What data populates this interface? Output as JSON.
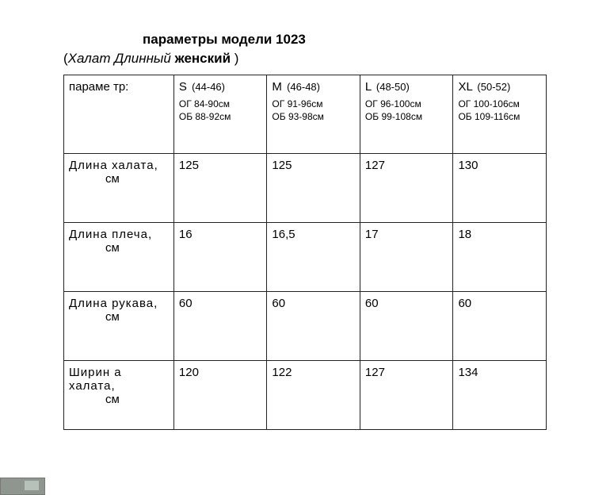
{
  "title": "параметры модели 1023",
  "subtitle_open": "(",
  "subtitle_italic": "Халат Длинный ",
  "subtitle_bold": "женский",
  "subtitle_close": " )",
  "header_param_label": "параме тр:",
  "sizes": [
    {
      "code": "S",
      "range": "(44-46)",
      "og": "ОГ 84-90см",
      "ob": "ОБ 88-92см"
    },
    {
      "code": "M",
      "range": "(46-48)",
      "og": "ОГ 91-96см",
      "ob": "ОБ 93-98см"
    },
    {
      "code": "L",
      "range": "(48-50)",
      "og": "ОГ 96-100см",
      "ob": "ОБ 99-108см"
    },
    {
      "code": "XL",
      "range": "(50-52)",
      "og": "ОГ 100-106см",
      "ob": "ОБ 109-116см"
    }
  ],
  "rows": [
    {
      "name": "Длина   халата,",
      "unit": "см",
      "vals": [
        "125",
        "125",
        "127",
        "130"
      ]
    },
    {
      "name": "Длина  плеча,",
      "unit": "см",
      "vals": [
        "16",
        "16,5",
        "17",
        "18"
      ]
    },
    {
      "name": "Длина  рукава,",
      "unit": "см",
      "vals": [
        "60",
        "60",
        "60",
        "60"
      ]
    },
    {
      "name": "Ширин а  халата,",
      "unit": "см",
      "vals": [
        "120",
        "122",
        "127",
        "134"
      ]
    }
  ],
  "style": {
    "border_color": "#222222",
    "bg": "#ffffff",
    "text": "#000000",
    "title_fontsize": 17,
    "cell_fontsize": 15,
    "sub_fontsize": 12
  }
}
